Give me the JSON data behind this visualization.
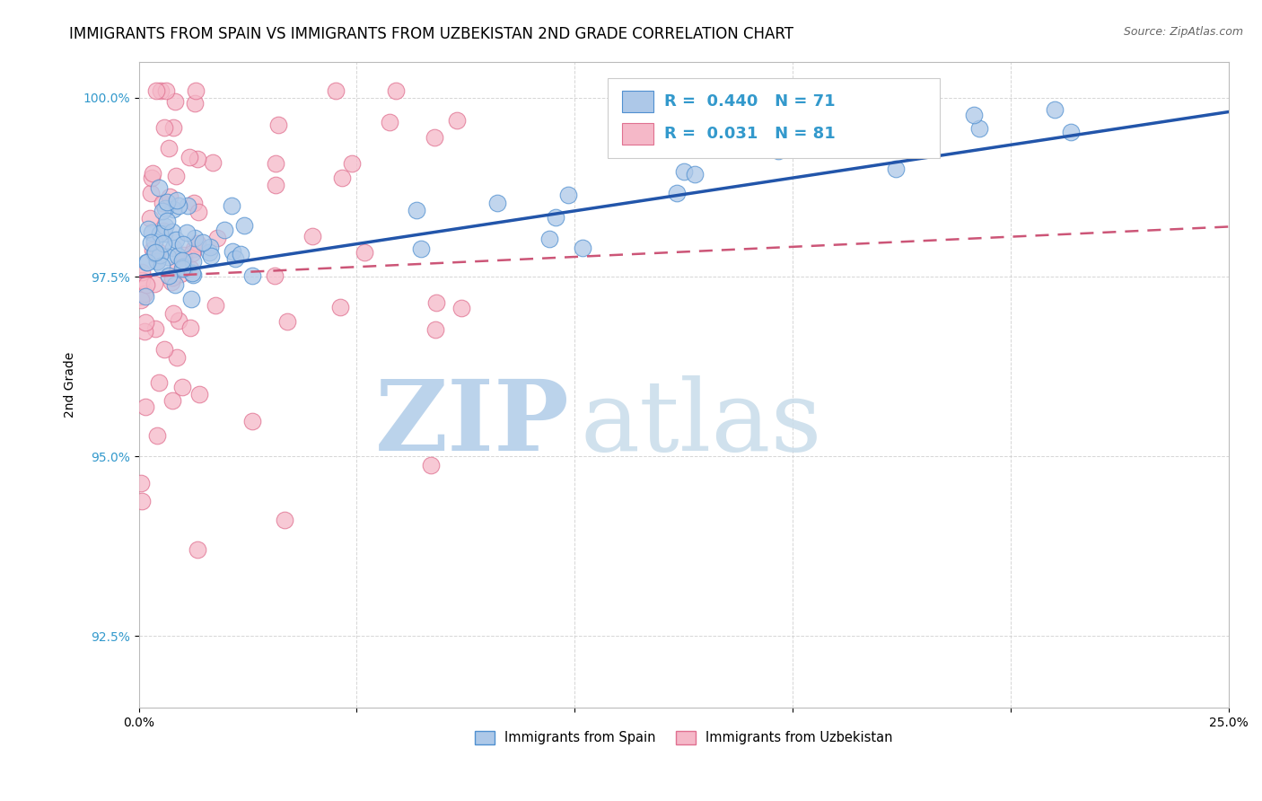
{
  "title": "IMMIGRANTS FROM SPAIN VS IMMIGRANTS FROM UZBEKISTAN 2ND GRADE CORRELATION CHART",
  "source_text": "Source: ZipAtlas.com",
  "ylabel": "2nd Grade",
  "xlim": [
    0.0,
    0.25
  ],
  "ylim": [
    0.915,
    1.005
  ],
  "xticks": [
    0.0,
    0.05,
    0.1,
    0.15,
    0.2,
    0.25
  ],
  "xticklabels": [
    "0.0%",
    "",
    "",
    "",
    "",
    "25.0%"
  ],
  "yticks": [
    0.925,
    0.95,
    0.975,
    1.0
  ],
  "yticklabels": [
    "92.5%",
    "95.0%",
    "97.5%",
    "100.0%"
  ],
  "legend_spain": "Immigrants from Spain",
  "legend_uzbekistan": "Immigrants from Uzbekistan",
  "R_spain": 0.44,
  "N_spain": 71,
  "R_uzbekistan": 0.031,
  "N_uzbekistan": 81,
  "blue_color": "#adc8e8",
  "pink_color": "#f5b8c8",
  "blue_edge_color": "#5090d0",
  "pink_edge_color": "#e07090",
  "blue_line_color": "#2255aa",
  "pink_line_color": "#cc5577",
  "title_fontsize": 12,
  "watermark_color": "#d0e8f8",
  "watermark_zip_color": "#b8d4f0",
  "watermark_atlas_color": "#c8dcea"
}
